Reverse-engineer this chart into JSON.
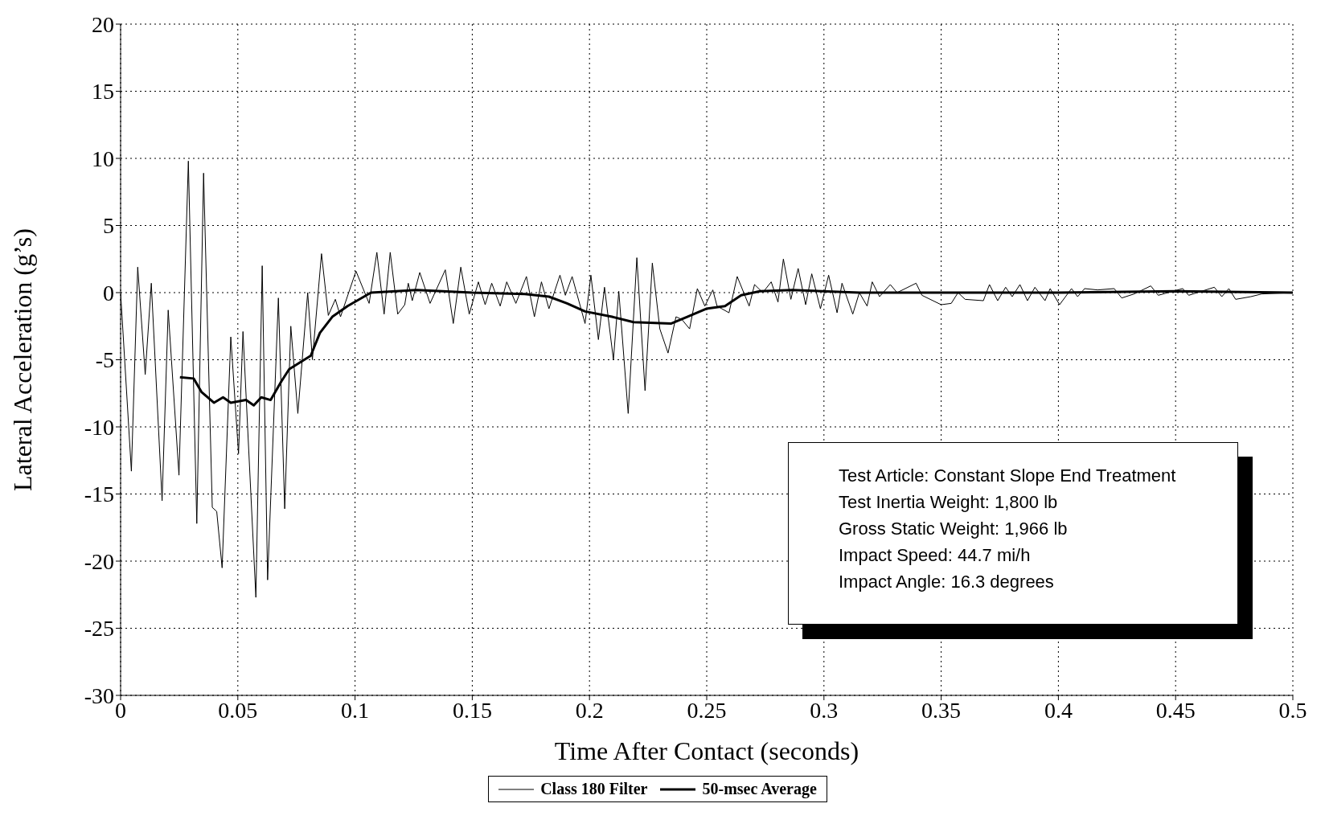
{
  "chart_data": {
    "type": "line",
    "xlabel": "Time After Contact (seconds)",
    "ylabel": "Lateral Acceleration (g’s)",
    "xlim": [
      0,
      0.5
    ],
    "xticks": [
      0,
      0.05,
      0.1,
      0.15,
      0.2,
      0.25,
      0.3,
      0.35,
      0.4,
      0.45,
      0.5
    ],
    "ylim": [
      -30,
      20
    ],
    "yticks": [
      -30,
      -25,
      -20,
      -15,
      -10,
      -5,
      0,
      5,
      10,
      15,
      20
    ],
    "grid": true,
    "legend": "bottom",
    "marker": "none",
    "line_style": "solid",
    "annotations": [
      "Test Article:  Constant Slope End Treatment",
      "Test Inertia Weight:  1,800 lb",
      "Gross Static Weight:  1,966 lb",
      "Impact Speed:  44.7 mi/h",
      "Impact Angle:  16.3 degrees"
    ],
    "series": [
      {
        "name": "Class 180 Filter",
        "color": "#000000",
        "x": [
          0,
          0.0046,
          0.0073,
          0.0105,
          0.0131,
          0.0177,
          0.0203,
          0.0249,
          0.0289,
          0.0325,
          0.0354,
          0.0391,
          0.041,
          0.0433,
          0.047,
          0.0503,
          0.0522,
          0.0577,
          0.0604,
          0.0627,
          0.0673,
          0.07,
          0.0726,
          0.0756,
          0.0798,
          0.0818,
          0.0857,
          0.0886,
          0.0916,
          0.0938,
          0.1004,
          0.106,
          0.1093,
          0.1124,
          0.115,
          0.1182,
          0.1212,
          0.1227,
          0.1244,
          0.1276,
          0.132,
          0.1385,
          0.1419,
          0.1451,
          0.1487,
          0.1526,
          0.1555,
          0.1583,
          0.1619,
          0.1647,
          0.1686,
          0.1731,
          0.1765,
          0.1795,
          0.1827,
          0.1874,
          0.1897,
          0.1926,
          0.1981,
          0.2006,
          0.2038,
          0.2064,
          0.2102,
          0.2125,
          0.2165,
          0.2202,
          0.2237,
          0.2268,
          0.23,
          0.2335,
          0.2369,
          0.2394,
          0.2427,
          0.246,
          0.2492,
          0.2526,
          0.2544,
          0.2595,
          0.263,
          0.2681,
          0.2704,
          0.2739,
          0.2775,
          0.2804,
          0.2827,
          0.2859,
          0.289,
          0.2922,
          0.2948,
          0.2985,
          0.302,
          0.3056,
          0.3077,
          0.3123,
          0.3151,
          0.3184,
          0.3206,
          0.3237,
          0.3283,
          0.3312,
          0.3393,
          0.3418,
          0.35,
          0.3543,
          0.3572,
          0.3602,
          0.368,
          0.3706,
          0.3741,
          0.3775,
          0.3803,
          0.3836,
          0.3868,
          0.39,
          0.3943,
          0.3965,
          0.4005,
          0.4056,
          0.4082,
          0.4112,
          0.4167,
          0.4238,
          0.427,
          0.4323,
          0.4394,
          0.4426,
          0.453,
          0.4556,
          0.4665,
          0.4697,
          0.4727,
          0.4756,
          0.4821,
          0.4867,
          0.5
        ],
        "values": [
          0,
          -13.3,
          1.9,
          -6.1,
          0.7,
          -15.5,
          -1.3,
          -13.6,
          9.8,
          -17.2,
          8.9,
          -16,
          -16.3,
          -20.5,
          -3.3,
          -12,
          -2.9,
          -22.7,
          2,
          -21.4,
          -0.4,
          -16.1,
          -2.5,
          -9,
          0,
          -5,
          2.9,
          -1.7,
          -0.5,
          -1.8,
          1.6,
          -0.8,
          3,
          -1.6,
          3,
          -1.6,
          -0.9,
          0.7,
          -0.6,
          1.5,
          -0.8,
          1.7,
          -2.3,
          1.9,
          -1.6,
          0.8,
          -0.9,
          0.7,
          -1,
          0.8,
          -0.8,
          1.2,
          -1.8,
          0.8,
          -1.2,
          1.3,
          -0.2,
          1.2,
          -2.3,
          1.3,
          -3.5,
          0.4,
          -5,
          0.1,
          -9,
          2.6,
          -7.3,
          2.2,
          -2.7,
          -4.5,
          -1.8,
          -2,
          -2.7,
          0.3,
          -1,
          0.2,
          -1,
          -1.5,
          1.2,
          -1,
          0.6,
          0,
          0.8,
          -0.7,
          2.5,
          -0.5,
          1.8,
          -0.9,
          1.4,
          -1.2,
          1.3,
          -1.5,
          0.7,
          -1.6,
          0,
          -1,
          0.8,
          -0.3,
          0.6,
          0,
          0.7,
          -0.2,
          -0.9,
          -0.8,
          0,
          -0.5,
          -0.6,
          0.6,
          -0.6,
          0.4,
          -0.3,
          0.6,
          -0.6,
          0.4,
          -0.6,
          0.3,
          -0.9,
          0.3,
          -0.3,
          0.3,
          0.2,
          0.3,
          -0.4,
          -0.1,
          0.5,
          -0.2,
          0.3,
          -0.2,
          0.4,
          -0.3,
          0.3,
          -0.5,
          -0.3,
          -0.1,
          0
        ]
      },
      {
        "name": "50-msec Average",
        "color": "#000000",
        "x": [
          0.0253,
          0.0312,
          0.0345,
          0.0398,
          0.0437,
          0.047,
          0.0535,
          0.0568,
          0.06,
          0.064,
          0.0686,
          0.0719,
          0.0811,
          0.085,
          0.0903,
          0.0968,
          0.1068,
          0.1263,
          0.15,
          0.1724,
          0.1827,
          0.1904,
          0.1981,
          0.2096,
          0.2188,
          0.2349,
          0.2417,
          0.2498,
          0.2578,
          0.2647,
          0.2727,
          0.2865,
          0.3151,
          0.34,
          0.4,
          0.45,
          0.5
        ],
        "values": [
          -6.3,
          -6.4,
          -7.4,
          -8.2,
          -7.8,
          -8.2,
          -8,
          -8.4,
          -7.8,
          -8,
          -6.6,
          -5.7,
          -4.7,
          -3,
          -1.8,
          -1,
          0,
          0.2,
          0,
          -0.1,
          -0.3,
          -0.8,
          -1.4,
          -1.8,
          -2.2,
          -2.3,
          -1.8,
          -1.2,
          -1,
          -0.2,
          0.1,
          0.2,
          0,
          0,
          0,
          0.1,
          0
        ]
      }
    ]
  }
}
